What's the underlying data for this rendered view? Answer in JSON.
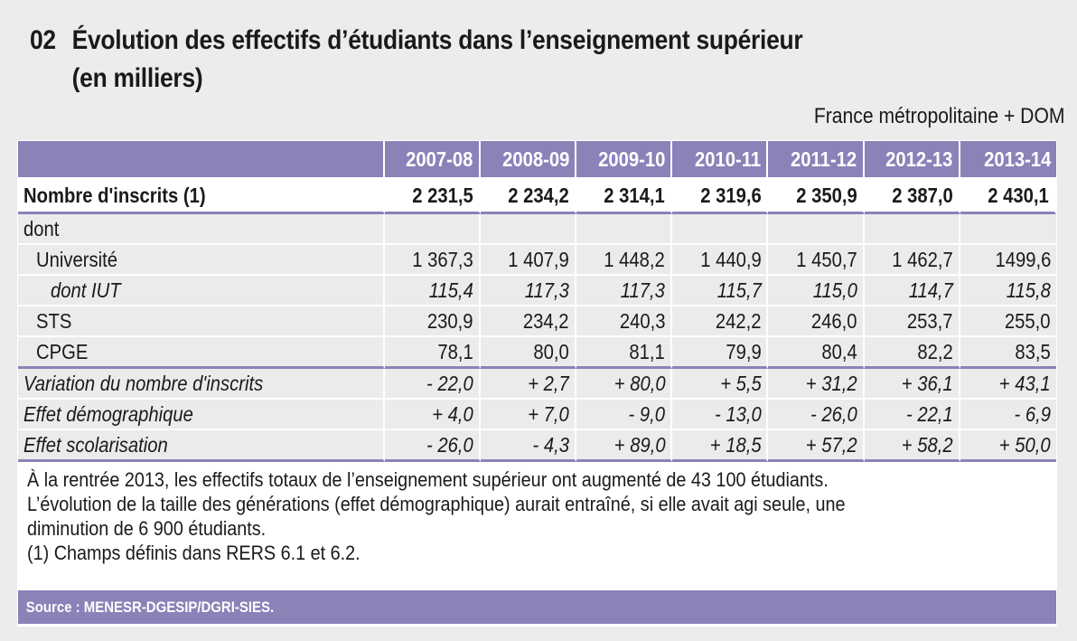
{
  "header": {
    "number": "02",
    "title_line1": "Évolution des effectifs d’étudiants dans l’enseignement supérieur",
    "title_line2": "(en milliers)",
    "scope": "France métropolitaine + DOM"
  },
  "colors": {
    "accent": "#8983b8",
    "background": "#ececec",
    "cell": "#ebebeb"
  },
  "table": {
    "columns": [
      "2007-08",
      "2008-09",
      "2009-10",
      "2010-11",
      "2011-12",
      "2012-13",
      "2013-14"
    ],
    "rows": [
      {
        "label": "Nombre d'inscrits (1)",
        "values": [
          "2 231,5",
          "2 234,2",
          "2 314,1",
          "2 319,6",
          "2 350,9",
          "2 387,0",
          "2 430,1"
        ]
      },
      {
        "label": "dont",
        "values": [
          "",
          "",
          "",
          "",
          "",
          "",
          ""
        ]
      },
      {
        "label": "Université",
        "values": [
          "1 367,3",
          "1 407,9",
          "1 448,2",
          "1 440,9",
          "1 450,7",
          "1 462,7",
          "1499,6"
        ]
      },
      {
        "label": "dont IUT",
        "values": [
          "115,4",
          "117,3",
          "117,3",
          "115,7",
          "115,0",
          "114,7",
          "115,8"
        ]
      },
      {
        "label": "STS",
        "values": [
          "230,9",
          "234,2",
          "240,3",
          "242,2",
          "246,0",
          "253,7",
          "255,0"
        ]
      },
      {
        "label": "CPGE",
        "values": [
          "78,1",
          "80,0",
          "81,1",
          "79,9",
          "80,4",
          "82,2",
          "83,5"
        ]
      },
      {
        "label": "Variation du nombre d'inscrits",
        "values": [
          "- 22,0",
          "+ 2,7",
          "+ 80,0",
          "+ 5,5",
          "+ 31,2",
          "+ 36,1",
          "+ 43,1"
        ]
      },
      {
        "label": "Effet démographique",
        "values": [
          "+ 4,0",
          "+ 7,0",
          "- 9,0",
          "- 13,0",
          "- 26,0",
          "- 22,1",
          "- 6,9"
        ]
      },
      {
        "label": "Effet scolarisation",
        "values": [
          "- 26,0",
          "- 4,3",
          "+ 89,0",
          "+ 18,5",
          "+ 57,2",
          "+ 58,2",
          "+ 50,0"
        ]
      }
    ]
  },
  "notes": [
    "À la rentrée 2013, les effectifs totaux de l’enseignement supérieur ont augmenté de 43 100 étudiants.",
    "L’évolution de la taille des générations (effet démographique) aurait entraîné, si elle avait agi seule, une",
    "diminution de  6 900 étudiants.",
    "(1) Champs définis dans  RERS 6.1 et 6.2."
  ],
  "source": "Source : MENESR-DGESIP/DGRI-SIES."
}
